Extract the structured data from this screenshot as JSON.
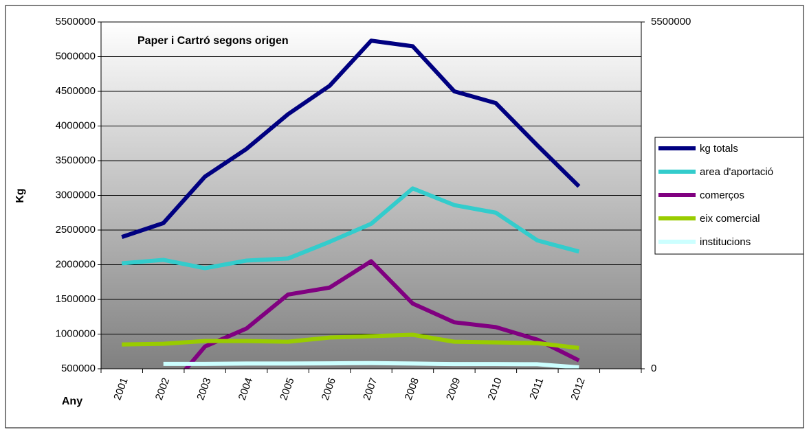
{
  "chart_data": {
    "type": "line",
    "title": "Paper i Cartró segons origen",
    "ylabel": "Kg",
    "xlabel": "Any",
    "categories": [
      "2001",
      "2002",
      "2003",
      "2004",
      "2005",
      "2006",
      "2007",
      "2008",
      "2009",
      "2010",
      "2011",
      "2012",
      null
    ],
    "series": [
      {
        "name": "kg totals",
        "color": "#000080",
        "values": [
          2400000,
          2600000,
          3270000,
          3670000,
          4170000,
          4580000,
          5230000,
          5150000,
          4500000,
          4330000,
          3720000,
          3130000,
          null
        ]
      },
      {
        "name": "area d'aportació",
        "color": "#33cccc",
        "values": [
          2020000,
          2070000,
          1950000,
          2060000,
          2090000,
          2330000,
          2590000,
          3100000,
          2860000,
          2750000,
          2350000,
          2190000,
          null
        ]
      },
      {
        "name": "comerços",
        "color": "#800080",
        "values": [
          null,
          110000,
          820000,
          1080000,
          1570000,
          1670000,
          2050000,
          1440000,
          1170000,
          1100000,
          920000,
          620000,
          null
        ]
      },
      {
        "name": "eix comercial",
        "color": "#99cc00",
        "values": [
          850000,
          860000,
          900000,
          900000,
          890000,
          950000,
          970000,
          990000,
          890000,
          880000,
          870000,
          800000,
          null
        ]
      },
      {
        "name": "institucions",
        "color": "#ccffff",
        "values": [
          null,
          570000,
          570000,
          575000,
          575000,
          578000,
          582000,
          575000,
          568000,
          568000,
          565000,
          520000,
          null
        ]
      }
    ],
    "ylim": [
      500000,
      5500000
    ],
    "yticks": [
      500000,
      1000000,
      1500000,
      2000000,
      2500000,
      3000000,
      3500000,
      4000000,
      4500000,
      5000000,
      5500000
    ],
    "y2lim": [
      0,
      5500000
    ],
    "y2ticks": [
      0,
      5500000
    ],
    "grid": true,
    "legend": "right"
  }
}
